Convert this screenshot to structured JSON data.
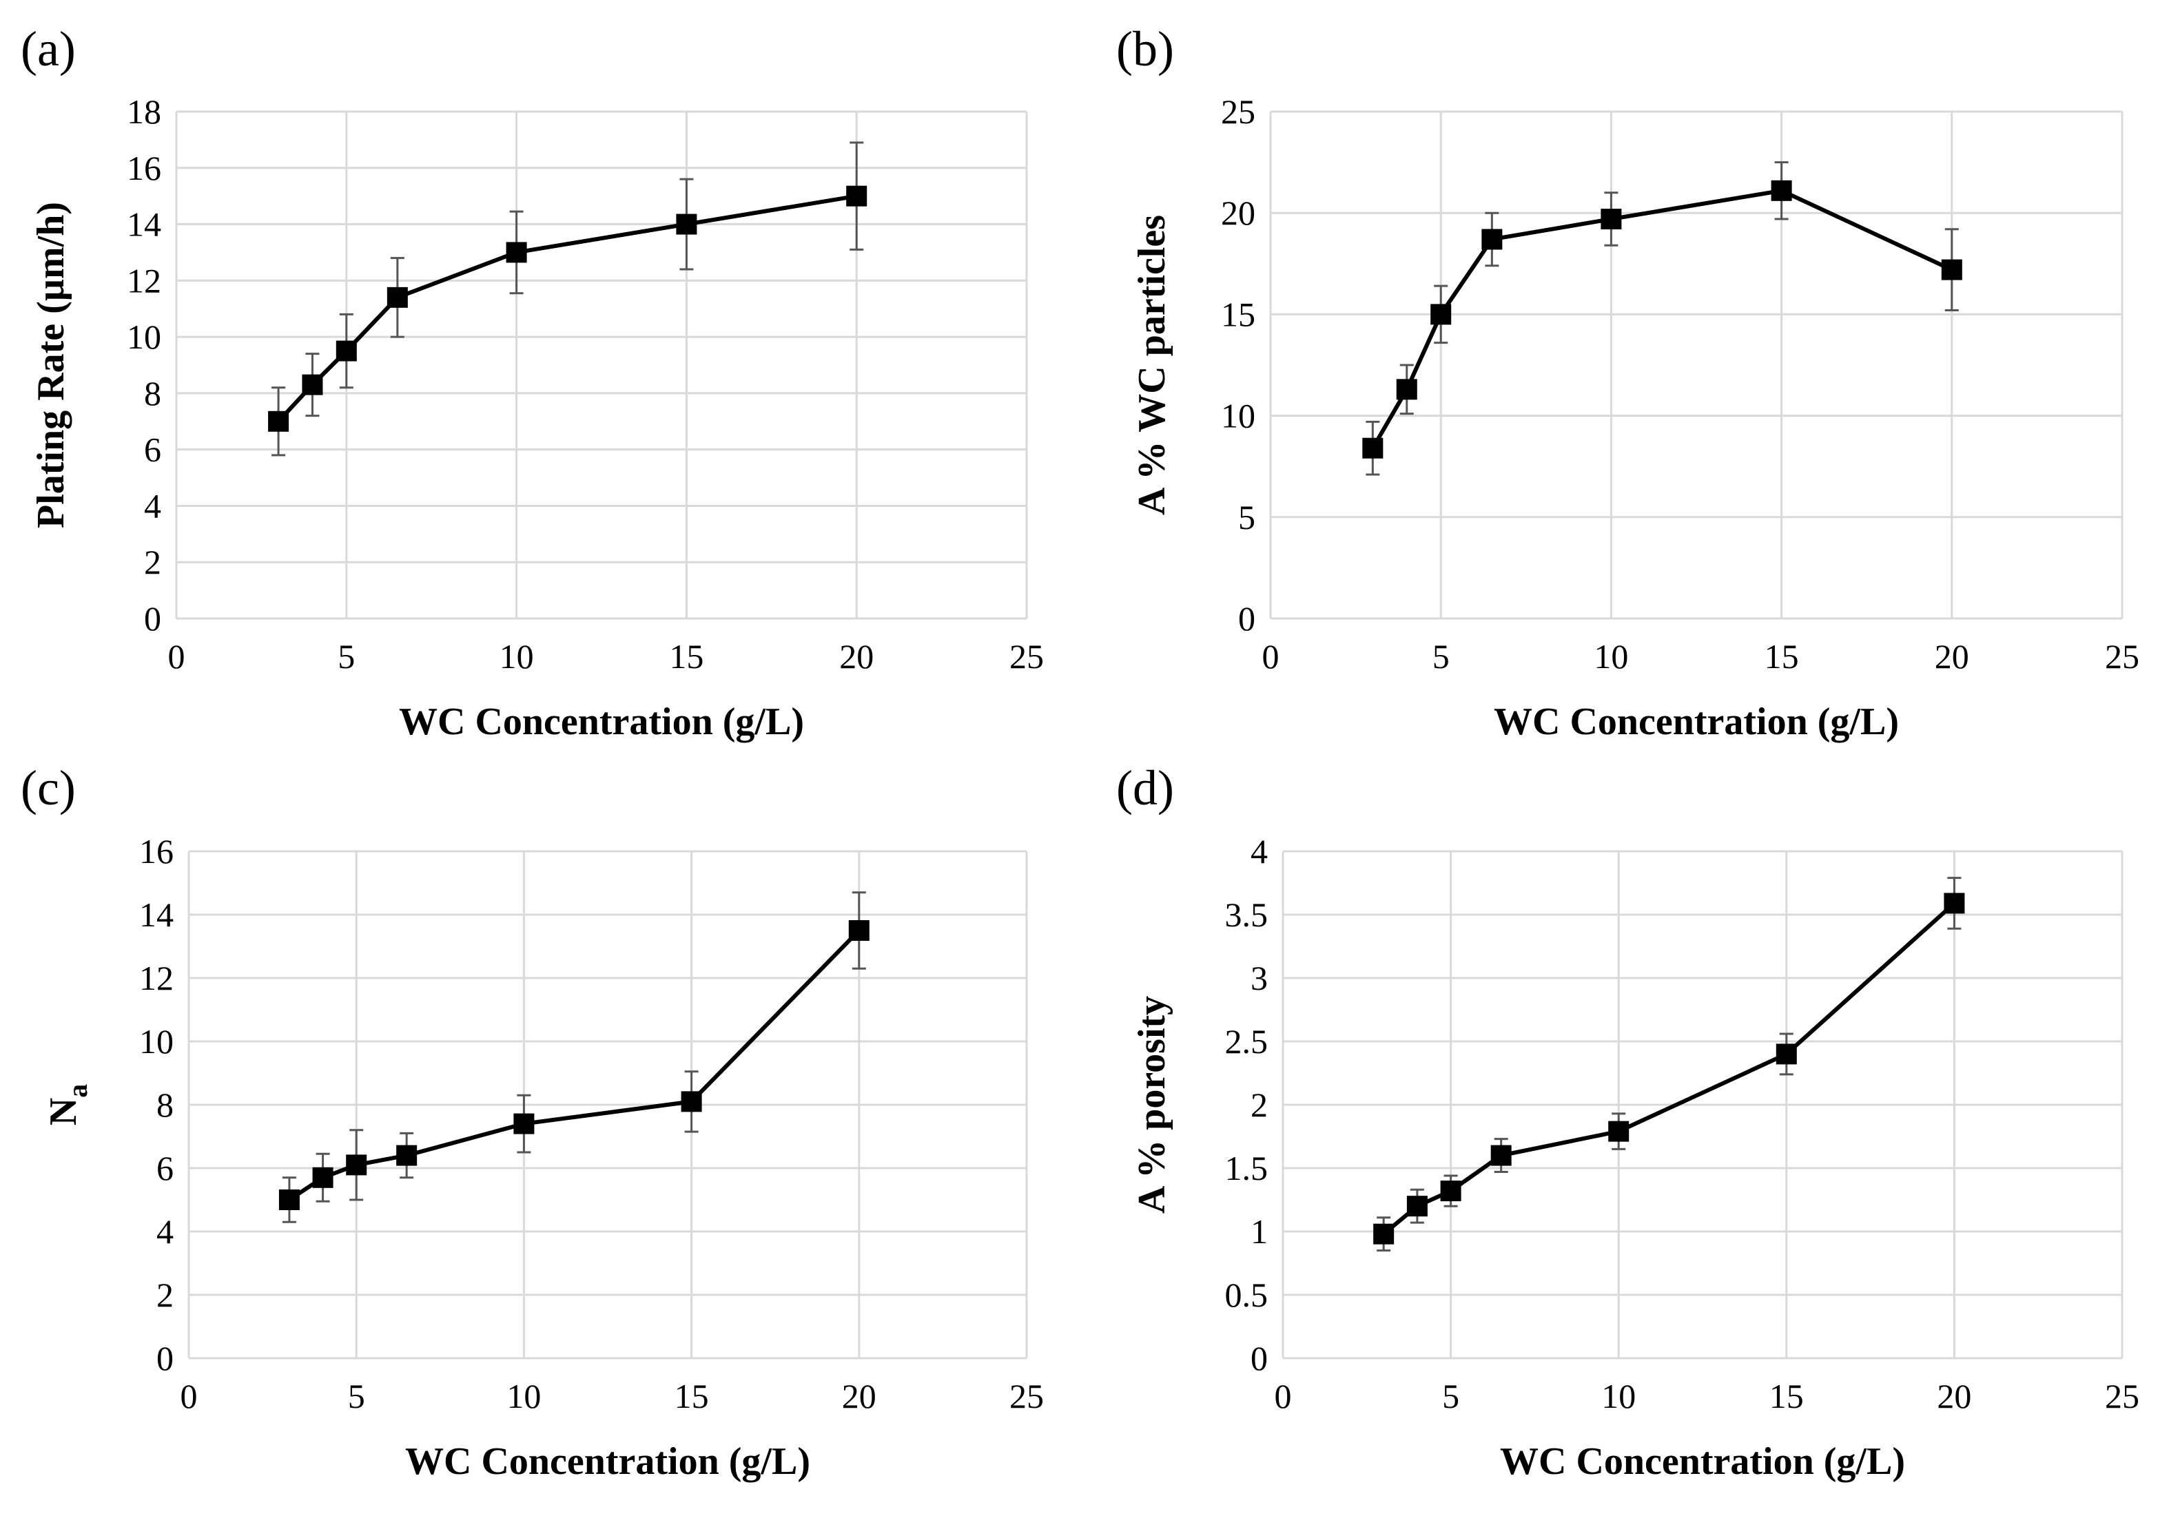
{
  "chart_data": [
    {
      "type": "line",
      "panel_label": "(a)",
      "xlabel": "WC Concentration (g/L)",
      "ylabel": "Plating Rate (µm/h)",
      "ylabel_sub": "",
      "xlim": [
        0,
        25
      ],
      "ylim": [
        0,
        18
      ],
      "xticks": [
        "0",
        "5",
        "10",
        "15",
        "20",
        "25"
      ],
      "yticks": [
        "0",
        "2",
        "4",
        "6",
        "8",
        "10",
        "12",
        "14",
        "16",
        "18"
      ],
      "grid": true,
      "x": [
        3,
        4,
        5,
        6.5,
        10,
        15,
        20
      ],
      "y": [
        7.0,
        8.3,
        9.5,
        11.4,
        13.0,
        14.0,
        15.0
      ],
      "error": [
        1.2,
        1.1,
        1.3,
        1.4,
        1.45,
        1.6,
        1.9
      ]
    },
    {
      "type": "line",
      "panel_label": "(b)",
      "xlabel": "WC Concentration (g/L)",
      "ylabel": "A % WC particles",
      "ylabel_sub": "",
      "xlim": [
        0,
        25
      ],
      "ylim": [
        0,
        25
      ],
      "xticks": [
        "0",
        "5",
        "10",
        "15",
        "20",
        "25"
      ],
      "yticks": [
        "0",
        "5",
        "10",
        "15",
        "20",
        "25"
      ],
      "grid": true,
      "x": [
        3,
        4,
        5,
        6.5,
        10,
        15,
        20
      ],
      "y": [
        8.4,
        11.3,
        15.0,
        18.7,
        19.7,
        21.1,
        17.2
      ],
      "error": [
        1.3,
        1.2,
        1.4,
        1.3,
        1.3,
        1.4,
        2.0
      ]
    },
    {
      "type": "line",
      "panel_label": "(c)",
      "xlabel": "WC Concentration (g/L)",
      "ylabel": "N",
      "ylabel_sub": "a",
      "xlim": [
        0,
        25
      ],
      "ylim": [
        0,
        16
      ],
      "xticks": [
        "0",
        "5",
        "10",
        "15",
        "20",
        "25"
      ],
      "yticks": [
        "0",
        "2",
        "4",
        "6",
        "8",
        "10",
        "12",
        "14",
        "16"
      ],
      "grid": true,
      "x": [
        3,
        4,
        5,
        6.5,
        10,
        15,
        20
      ],
      "y": [
        5.0,
        5.7,
        6.1,
        6.4,
        7.4,
        8.1,
        13.5
      ],
      "error": [
        0.7,
        0.75,
        1.1,
        0.7,
        0.9,
        0.95,
        1.2
      ]
    },
    {
      "type": "line",
      "panel_label": "(d)",
      "xlabel": "WC Concentration (g/L)",
      "ylabel": "A % porosity",
      "ylabel_sub": "",
      "xlim": [
        0,
        25
      ],
      "ylim": [
        0,
        4
      ],
      "xticks": [
        "0",
        "5",
        "10",
        "15",
        "20",
        "25"
      ],
      "yticks": [
        "0",
        "0.5",
        "1",
        "1.5",
        "2",
        "2.5",
        "3",
        "3.5",
        "4"
      ],
      "grid": true,
      "x": [
        3,
        4,
        5,
        6.5,
        10,
        15,
        20
      ],
      "y": [
        0.98,
        1.2,
        1.32,
        1.6,
        1.79,
        2.4,
        3.59
      ],
      "error": [
        0.13,
        0.13,
        0.12,
        0.13,
        0.14,
        0.16,
        0.2
      ]
    }
  ]
}
